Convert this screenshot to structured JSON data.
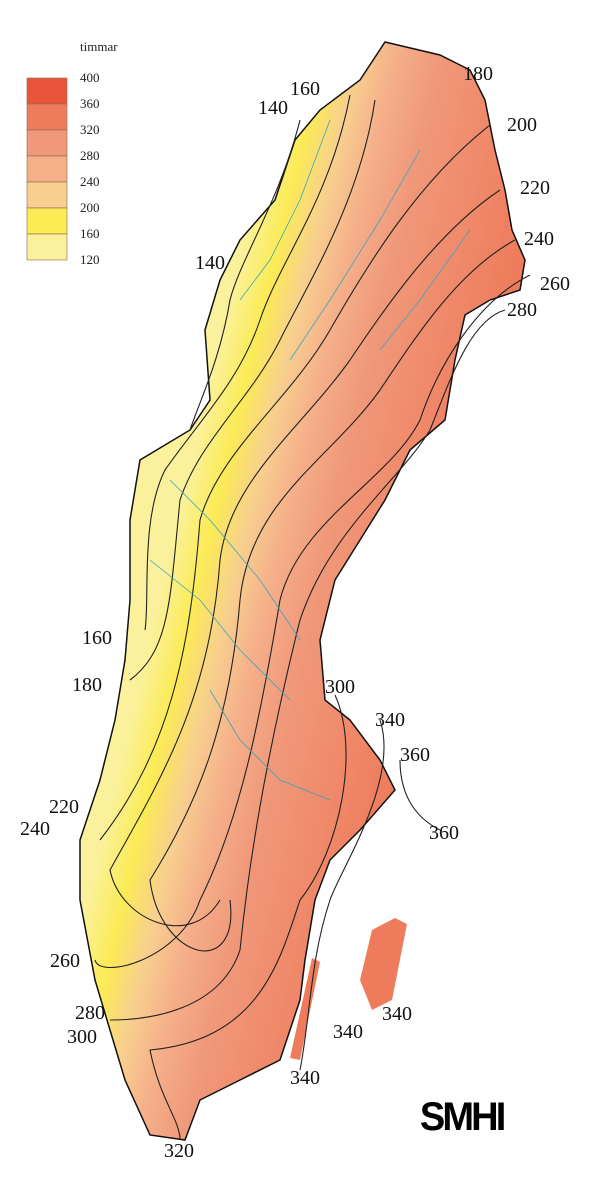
{
  "legend": {
    "unit": "timmar",
    "ticks": [
      "400",
      "360",
      "320",
      "280",
      "240",
      "200",
      "160",
      "120"
    ],
    "colors": [
      "#e8553a",
      "#ee7c5c",
      "#f0987a",
      "#f5b08a",
      "#f8cf8f",
      "#fbeb55",
      "#fbf19c"
    ]
  },
  "isoline_labels": [
    "180",
    "160",
    "200",
    "140",
    "220",
    "240",
    "140",
    "260",
    "280",
    "160",
    "180",
    "300",
    "340",
    "360",
    "220",
    "240",
    "360",
    "260",
    "340",
    "280",
    "340",
    "300",
    "340",
    "320"
  ],
  "logo": "SMHI",
  "colors": {
    "outline": "#111111",
    "isoline": "#222222",
    "river": "#3aa6b9"
  }
}
